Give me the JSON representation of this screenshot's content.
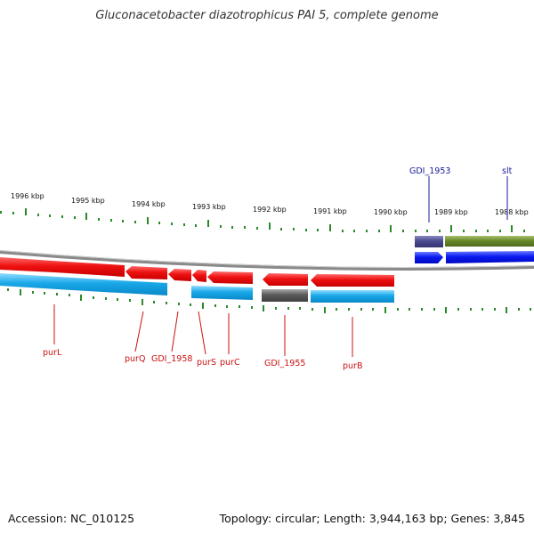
{
  "title": "Gluconacetobacter diazotrophicus PAI 5, complete genome",
  "footer": {
    "accession": "Accession: NC_010125",
    "topology": "Topology: circular; Length: 3,944,163 bp; Genes: 3,845"
  },
  "colors": {
    "forward_gene": "#ee1111",
    "reverse_gene": "#18a8e8",
    "rna": "#5a5a5a",
    "label_red": "#cc1111",
    "label_blue": "#1a1a99",
    "ticks": "#2a8a2a",
    "backbone": "#888888",
    "blue_feature": "#0a1af0",
    "olive_feature": "#6a8a2a",
    "purple_feature": "#4a4a90"
  },
  "kbp_ticks": [
    "1996 kbp",
    "1995 kbp",
    "1994 kbp",
    "1993 kbp",
    "1992 kbp",
    "1991 kbp",
    "1990 kbp",
    "1989 kbp",
    "1988 kbp"
  ],
  "gene_labels_below": [
    "purL",
    "purQ",
    "GDI_1958",
    "purS",
    "purC",
    "GDI_1955",
    "purB"
  ],
  "gene_labels_above": [
    "GDI_1953",
    "slt"
  ]
}
